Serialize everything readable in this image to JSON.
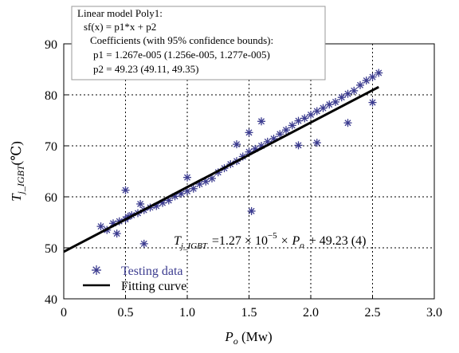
{
  "chart_data": {
    "type": "scatter",
    "xlabel": "Po (Mw)",
    "xlabel_main": "P",
    "xlabel_sub": "o",
    "xlabel_unit": " (Mw)",
    "ylabel": "Tj_IGBT (℃)",
    "ylabel_main": "T",
    "ylabel_sub": "j_IGBT",
    "ylabel_unit": "(℃)",
    "xlim": [
      0,
      3.0
    ],
    "ylim": [
      40,
      90
    ],
    "xticks": [
      0,
      0.5,
      1.0,
      1.5,
      2.0,
      2.5,
      3.0
    ],
    "xtick_labels": [
      "0",
      "0.5",
      "1.0",
      "1.5",
      "2.0",
      "2.5",
      "3.0"
    ],
    "yticks": [
      40,
      50,
      60,
      70,
      80,
      90
    ],
    "ytick_labels": [
      "40",
      "50",
      "60",
      "70",
      "80",
      "90"
    ],
    "grid": true,
    "legend_position": "bottom-left",
    "series": [
      {
        "name": "Testing data",
        "marker": "asterisk",
        "color": "#3b3b8f",
        "points": [
          [
            0.3,
            54.2
          ],
          [
            0.35,
            53.5
          ],
          [
            0.4,
            54.8
          ],
          [
            0.45,
            55.2
          ],
          [
            0.5,
            55.6
          ],
          [
            0.5,
            61.3
          ],
          [
            0.52,
            56.1
          ],
          [
            0.55,
            56.4
          ],
          [
            0.6,
            56.8
          ],
          [
            0.62,
            58.6
          ],
          [
            0.65,
            50.8
          ],
          [
            0.65,
            57.4
          ],
          [
            0.7,
            57.9
          ],
          [
            0.75,
            58.2
          ],
          [
            0.8,
            58.8
          ],
          [
            0.85,
            59.3
          ],
          [
            0.9,
            60.1
          ],
          [
            0.95,
            60.6
          ],
          [
            1.0,
            61.1
          ],
          [
            1.0,
            63.8
          ],
          [
            1.05,
            61.6
          ],
          [
            1.1,
            62.5
          ],
          [
            1.15,
            63.0
          ],
          [
            1.2,
            63.6
          ],
          [
            1.25,
            64.8
          ],
          [
            1.3,
            65.6
          ],
          [
            1.35,
            66.4
          ],
          [
            1.4,
            67.0
          ],
          [
            1.4,
            70.3
          ],
          [
            1.45,
            67.9
          ],
          [
            1.5,
            68.8
          ],
          [
            1.5,
            72.6
          ],
          [
            1.55,
            69.4
          ],
          [
            1.6,
            70.0
          ],
          [
            1.6,
            74.8
          ],
          [
            1.65,
            70.8
          ],
          [
            1.7,
            71.4
          ],
          [
            1.75,
            72.3
          ],
          [
            1.8,
            73.1
          ],
          [
            1.85,
            74.0
          ],
          [
            1.9,
            74.9
          ],
          [
            1.9,
            70.1
          ],
          [
            1.95,
            75.4
          ],
          [
            2.0,
            76.1
          ],
          [
            2.05,
            76.8
          ],
          [
            2.1,
            77.4
          ],
          [
            2.15,
            78.1
          ],
          [
            2.2,
            78.6
          ],
          [
            2.25,
            79.5
          ],
          [
            2.3,
            80.2
          ],
          [
            2.35,
            80.8
          ],
          [
            2.4,
            81.9
          ],
          [
            2.45,
            82.8
          ],
          [
            2.5,
            83.5
          ],
          [
            2.55,
            84.3
          ],
          [
            0.43,
            52.8
          ],
          [
            1.52,
            57.2
          ],
          [
            2.05,
            70.6
          ],
          [
            2.3,
            74.5
          ],
          [
            2.5,
            78.5
          ]
        ]
      },
      {
        "name": "Fitting curve",
        "type": "line",
        "color": "#000000",
        "x": [
          0,
          2.55
        ],
        "y": [
          49.23,
          81.54
        ]
      }
    ],
    "annotations": {
      "equation_lhs_main": "T",
      "equation_lhs_sub": "j_IGBT",
      "equation_rhs": "=1.27 × 10",
      "equation_exp": "−5",
      "equation_rhs2": "× P",
      "equation_rhs2_sub": "o",
      "equation_rhs3": "+ 49.23   (4)",
      "fit_box": [
        "Linear model Poly1:",
        "sf(x) = p1*x + p2",
        "Coefficients (with 95% confidence bounds):",
        "p1 =  1.267e-005  (1.256e-005, 1.277e-005)",
        "p2 =        49.23  (49.11, 49.35)"
      ]
    }
  }
}
